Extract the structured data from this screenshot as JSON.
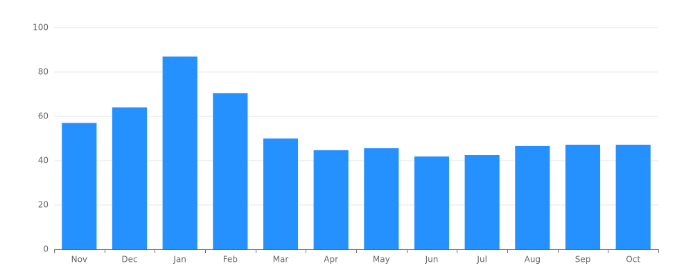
{
  "chart_data": {
    "type": "bar",
    "categories": [
      "Nov",
      "Dec",
      "Jan",
      "Feb",
      "Mar",
      "Apr",
      "May",
      "Jun",
      "Jul",
      "Aug",
      "Sep",
      "Oct"
    ],
    "values": [
      57,
      64,
      87,
      70.5,
      50,
      44.7,
      45.6,
      41.9,
      42.5,
      46.6,
      47.2,
      47.2
    ],
    "color": "#2491ff",
    "ylim": [
      0,
      100
    ],
    "yticks": [
      0,
      20,
      40,
      60,
      80,
      100
    ],
    "grid": true
  }
}
